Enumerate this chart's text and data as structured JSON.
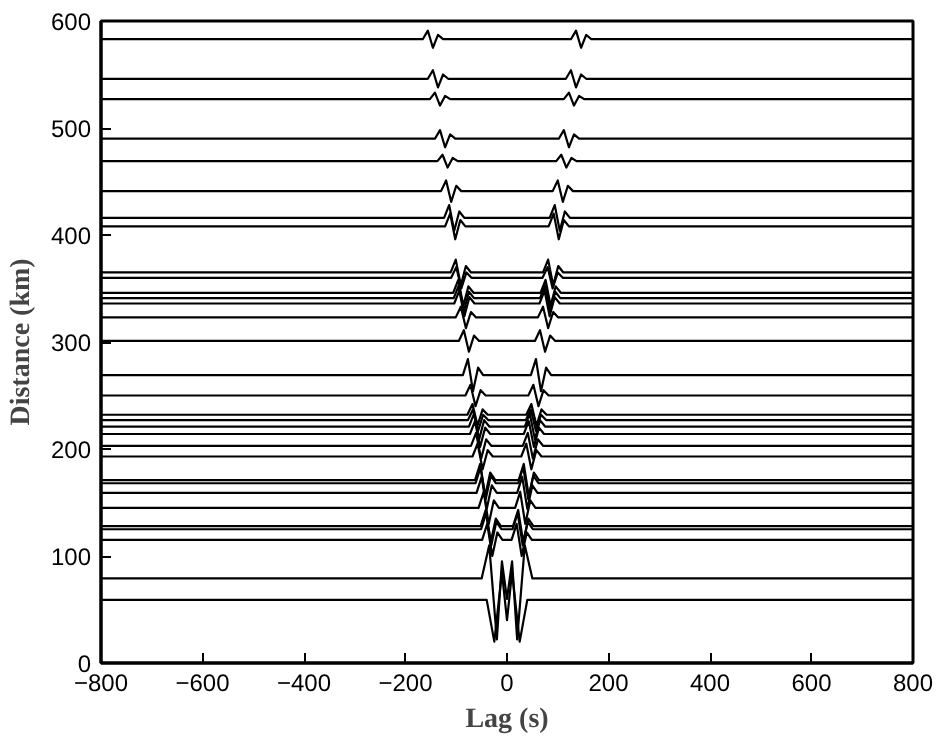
{
  "chart_data": {
    "type": "line",
    "xlabel": "Lag (s)",
    "ylabel": "Distance (km)",
    "xlim": [
      -800,
      800
    ],
    "ylim": [
      0,
      600
    ],
    "xticks": [
      -800,
      -600,
      -400,
      -200,
      0,
      200,
      400,
      600,
      800
    ],
    "yticks": [
      0,
      100,
      200,
      300,
      400,
      500,
      600
    ],
    "series": [
      {
        "color": "#000000",
        "x": [
          -800,
          -166,
          -156,
          -146,
          -136,
          -126,
          126,
          136,
          146,
          156,
          166,
          800
        ],
        "values": [
          583,
          583,
          591,
          575,
          587,
          583,
          583,
          591,
          575,
          587,
          583,
          583
        ]
      },
      {
        "color": "#000000",
        "x": [
          -800,
          -156,
          -146,
          -136,
          -126,
          -116,
          116,
          126,
          136,
          146,
          156,
          800
        ],
        "values": [
          546,
          546,
          554,
          538,
          550,
          546,
          546,
          554,
          538,
          550,
          546,
          546
        ]
      },
      {
        "color": "#000000",
        "x": [
          -800,
          -152,
          -142,
          -132,
          -122,
          -112,
          112,
          122,
          132,
          142,
          152,
          800
        ],
        "values": [
          527,
          527,
          533,
          521,
          530,
          527,
          527,
          533,
          521,
          530,
          527,
          527
        ]
      },
      {
        "color": "#000000",
        "x": [
          -800,
          -142,
          -132,
          -122,
          -112,
          -102,
          102,
          112,
          122,
          132,
          142,
          800
        ],
        "values": [
          490,
          490,
          498,
          482,
          494,
          490,
          490,
          498,
          482,
          494,
          490,
          490
        ]
      },
      {
        "color": "#000000",
        "x": [
          -800,
          -137,
          -127,
          -117,
          -107,
          -97,
          97,
          107,
          117,
          127,
          137,
          800
        ],
        "values": [
          469,
          469,
          475,
          463,
          472,
          469,
          469,
          475,
          463,
          472,
          469,
          469
        ]
      },
      {
        "color": "#000000",
        "x": [
          -800,
          -130,
          -120,
          -110,
          -100,
          -90,
          90,
          100,
          110,
          120,
          130,
          800
        ],
        "values": [
          441,
          441,
          451,
          431,
          446,
          441,
          441,
          451,
          431,
          446,
          441,
          441
        ]
      },
      {
        "color": "#000000",
        "x": [
          -800,
          -124,
          -114,
          -104,
          -94,
          -84,
          84,
          94,
          104,
          114,
          124,
          800
        ],
        "values": [
          416,
          416,
          428,
          404,
          422,
          416,
          416,
          428,
          404,
          422,
          416,
          416
        ]
      },
      {
        "color": "#000000",
        "x": [
          -800,
          -122,
          -112,
          -102,
          -92,
          -82,
          82,
          92,
          102,
          112,
          122,
          800
        ],
        "values": [
          408,
          408,
          420,
          396,
          414,
          408,
          408,
          420,
          396,
          414,
          408,
          408
        ]
      },
      {
        "color": "#000000",
        "x": [
          -800,
          -111,
          -101,
          -91,
          -81,
          -71,
          71,
          81,
          91,
          101,
          111,
          800
        ],
        "values": [
          365,
          365,
          377,
          353,
          371,
          365,
          365,
          377,
          353,
          371,
          365,
          365
        ]
      },
      {
        "color": "#000000",
        "x": [
          -800,
          -110,
          -100,
          -90,
          -80,
          -70,
          70,
          80,
          90,
          100,
          110,
          800
        ],
        "values": [
          360,
          360,
          370,
          350,
          365,
          360,
          360,
          370,
          350,
          365,
          360,
          360
        ]
      },
      {
        "color": "#000000",
        "x": [
          -800,
          -106,
          -96,
          -86,
          -76,
          -66,
          66,
          76,
          86,
          96,
          106,
          800
        ],
        "values": [
          346,
          346,
          358,
          334,
          352,
          346,
          346,
          358,
          334,
          352,
          346,
          346
        ]
      },
      {
        "color": "#000000",
        "x": [
          -800,
          -105,
          -95,
          -85,
          -75,
          -65,
          65,
          75,
          85,
          95,
          105,
          800
        ],
        "values": [
          341,
          341,
          353,
          329,
          347,
          341,
          341,
          353,
          329,
          347,
          341,
          341
        ]
      },
      {
        "color": "#000000",
        "x": [
          -800,
          -104,
          -94,
          -84,
          -74,
          -64,
          64,
          74,
          84,
          94,
          104,
          800
        ],
        "values": [
          336,
          336,
          348,
          324,
          342,
          336,
          336,
          348,
          324,
          342,
          336,
          336
        ]
      },
      {
        "color": "#000000",
        "x": [
          -800,
          -101,
          -91,
          -81,
          -71,
          -61,
          61,
          71,
          81,
          91,
          101,
          800
        ],
        "values": [
          323,
          323,
          333,
          313,
          328,
          323,
          323,
          333,
          313,
          328,
          323,
          323
        ]
      },
      {
        "color": "#000000",
        "x": [
          -800,
          -95,
          -85,
          -75,
          -65,
          -55,
          55,
          65,
          75,
          85,
          95,
          800
        ],
        "values": [
          301,
          301,
          311,
          291,
          306,
          301,
          301,
          311,
          291,
          306,
          301,
          301
        ]
      },
      {
        "color": "#000000",
        "x": [
          -800,
          -87,
          -77,
          -67,
          -57,
          -47,
          47,
          57,
          67,
          77,
          87,
          800
        ],
        "values": [
          269,
          269,
          284,
          254,
          276,
          269,
          269,
          284,
          254,
          276,
          269,
          269
        ]
      },
      {
        "color": "#000000",
        "x": [
          -800,
          -82,
          -72,
          -62,
          -52,
          -42,
          42,
          52,
          62,
          72,
          82,
          800
        ],
        "values": [
          250,
          250,
          260,
          240,
          255,
          250,
          250,
          260,
          240,
          255,
          250,
          250
        ]
      },
      {
        "color": "#000000",
        "x": [
          -800,
          -78,
          -68,
          -58,
          -48,
          -38,
          38,
          48,
          58,
          68,
          78,
          800
        ],
        "values": [
          232,
          232,
          242,
          222,
          237,
          232,
          232,
          242,
          222,
          237,
          232,
          232
        ]
      },
      {
        "color": "#000000",
        "x": [
          -800,
          -77,
          -67,
          -57,
          -47,
          -37,
          37,
          47,
          57,
          67,
          77,
          800
        ],
        "values": [
          227,
          227,
          237,
          217,
          232,
          227,
          227,
          237,
          217,
          232,
          227,
          227
        ]
      },
      {
        "color": "#000000",
        "x": [
          -800,
          -75,
          -65,
          -55,
          -45,
          -35,
          35,
          45,
          55,
          65,
          75,
          800
        ],
        "values": [
          221,
          221,
          233,
          209,
          227,
          221,
          221,
          233,
          209,
          227,
          221,
          221
        ]
      },
      {
        "color": "#000000",
        "x": [
          -800,
          -73,
          -63,
          -53,
          -43,
          -33,
          33,
          43,
          53,
          63,
          73,
          800
        ],
        "values": [
          214,
          214,
          226,
          202,
          220,
          214,
          214,
          226,
          202,
          220,
          214,
          214
        ]
      },
      {
        "color": "#000000",
        "x": [
          -800,
          -71,
          -61,
          -51,
          -41,
          -31,
          31,
          41,
          51,
          61,
          71,
          800
        ],
        "values": [
          203,
          203,
          215,
          191,
          209,
          203,
          203,
          215,
          191,
          209,
          203,
          203
        ]
      },
      {
        "color": "#000000",
        "x": [
          -800,
          -68,
          -58,
          -48,
          -38,
          -28,
          28,
          38,
          48,
          58,
          68,
          800
        ],
        "values": [
          193,
          193,
          205,
          181,
          199,
          193,
          193,
          205,
          181,
          199,
          193,
          193
        ]
      },
      {
        "color": "#000000",
        "x": [
          -800,
          -63,
          -53,
          -43,
          -33,
          -23,
          23,
          33,
          43,
          53,
          63,
          800
        ],
        "values": [
          171,
          171,
          186,
          156,
          178,
          171,
          171,
          186,
          156,
          178,
          171,
          171
        ]
      },
      {
        "color": "#000000",
        "x": [
          -800,
          -62,
          -52,
          -42,
          -32,
          -22,
          22,
          32,
          42,
          52,
          62,
          800
        ],
        "values": [
          168,
          168,
          183,
          153,
          175,
          168,
          168,
          183,
          153,
          175,
          168,
          168
        ]
      },
      {
        "color": "#000000",
        "x": [
          -800,
          -60,
          -50,
          -40,
          -30,
          -20,
          20,
          30,
          40,
          50,
          60,
          800
        ],
        "values": [
          159,
          159,
          174,
          144,
          166,
          159,
          159,
          174,
          144,
          166,
          159,
          159
        ]
      },
      {
        "color": "#000000",
        "x": [
          -800,
          -56,
          -46,
          -36,
          -26,
          -16,
          16,
          26,
          36,
          46,
          56,
          800
        ],
        "values": [
          145,
          145,
          160,
          130,
          152,
          145,
          145,
          160,
          130,
          152,
          145,
          145
        ]
      },
      {
        "color": "#000000",
        "x": [
          -800,
          -52,
          -42,
          -32,
          -22,
          -12,
          12,
          22,
          32,
          42,
          52,
          800
        ],
        "values": [
          128,
          128,
          143,
          113,
          135,
          128,
          128,
          143,
          113,
          135,
          128,
          128
        ]
      },
      {
        "color": "#000000",
        "x": [
          -800,
          -51,
          -41,
          -31,
          -21,
          -11,
          11,
          21,
          31,
          41,
          51,
          800
        ],
        "values": [
          125,
          125,
          140,
          110,
          132,
          125,
          125,
          140,
          110,
          132,
          125,
          125
        ]
      },
      {
        "color": "#000000",
        "x": [
          -800,
          -49,
          -39,
          -29,
          -19,
          -9,
          9,
          19,
          29,
          39,
          49,
          800
        ],
        "values": [
          115,
          115,
          130,
          100,
          122,
          115,
          115,
          130,
          100,
          122,
          115,
          115
        ]
      },
      {
        "color": "#000000",
        "x": [
          -800,
          -50,
          -35,
          -20,
          -10,
          0,
          10,
          20,
          35,
          50,
          800
        ],
        "values": [
          79,
          79,
          110,
          22,
          95,
          60,
          95,
          22,
          110,
          79,
          79
        ]
      },
      {
        "color": "#000000",
        "x": [
          -800,
          -40,
          -25,
          -10,
          0,
          10,
          25,
          40,
          800
        ],
        "values": [
          59,
          59,
          20,
          85,
          40,
          85,
          20,
          59,
          59
        ]
      }
    ]
  }
}
